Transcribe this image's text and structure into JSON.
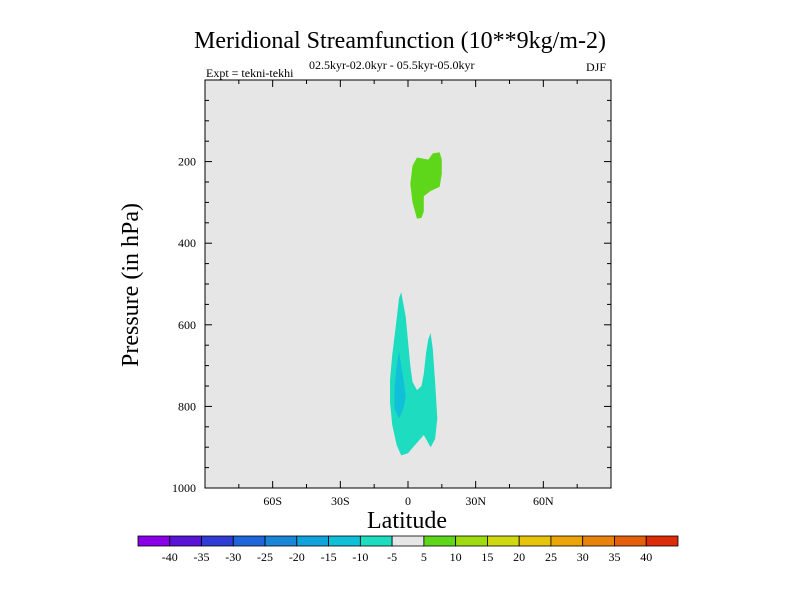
{
  "chart_data": {
    "type": "contour",
    "title": "Meridional Streamfunction (10**9kg/m-2)",
    "subtitle_left": "Expt = tekni-tekhi",
    "subtitle_center": "02.5kyr-02.0kyr - 05.5kyr-05.0kyr",
    "subtitle_right": "DJF",
    "xlabel": "Latitude",
    "ylabel": "Pressure (in hPa)",
    "xlim": [
      -90,
      90
    ],
    "ylim": [
      1000,
      0
    ],
    "x_ticks": [
      {
        "value": -60,
        "label": "60S"
      },
      {
        "value": -30,
        "label": "30S"
      },
      {
        "value": 0,
        "label": "0"
      },
      {
        "value": 30,
        "label": "30N"
      },
      {
        "value": 60,
        "label": "60N"
      }
    ],
    "y_ticks": [
      {
        "value": 200,
        "label": "200"
      },
      {
        "value": 400,
        "label": "400"
      },
      {
        "value": 600,
        "label": "600"
      },
      {
        "value": 800,
        "label": "800"
      },
      {
        "value": 1000,
        "label": "1000"
      }
    ],
    "background_color": "#e6e6e6",
    "colorbar": {
      "levels": [
        -40,
        -35,
        -30,
        -25,
        -20,
        -15,
        -10,
        -5,
        5,
        10,
        15,
        20,
        25,
        30,
        35,
        40
      ],
      "colors": [
        "#8a00e8",
        "#5a14d8",
        "#2f3cd6",
        "#1f66da",
        "#1a86d8",
        "#0fa2dc",
        "#10bfd8",
        "#1edcc0",
        "#e6e6e6",
        "#5ed71a",
        "#9edb10",
        "#cfd810",
        "#e6c40a",
        "#eba40a",
        "#e8820c",
        "#e45e0c",
        "#dc2c08"
      ]
    },
    "regions": [
      {
        "name": "positive-upper",
        "level_range": [
          5,
          10
        ],
        "color": "#5ed71a",
        "outline": [
          [
            4,
            340
          ],
          [
            2,
            300
          ],
          [
            1,
            255
          ],
          [
            2,
            210
          ],
          [
            4,
            190
          ],
          [
            9,
            195
          ],
          [
            11,
            180
          ],
          [
            14,
            177
          ],
          [
            15,
            195
          ],
          [
            15,
            230
          ],
          [
            14,
            262
          ],
          [
            10,
            272
          ],
          [
            7,
            285
          ],
          [
            7,
            322
          ],
          [
            6,
            338
          ]
        ]
      },
      {
        "name": "negative-lower-outer",
        "level_range": [
          -10,
          -5
        ],
        "color": "#1edcc0",
        "outline": [
          [
            -3,
            520
          ],
          [
            -1,
            580
          ],
          [
            0,
            640
          ],
          [
            1,
            700
          ],
          [
            2,
            740
          ],
          [
            4,
            760
          ],
          [
            6,
            750
          ],
          [
            7,
            720
          ],
          [
            8,
            670
          ],
          [
            9,
            635
          ],
          [
            10,
            620
          ],
          [
            11,
            660
          ],
          [
            12,
            740
          ],
          [
            13,
            830
          ],
          [
            12,
            880
          ],
          [
            10,
            900
          ],
          [
            7,
            870
          ],
          [
            3,
            895
          ],
          [
            0,
            915
          ],
          [
            -3,
            920
          ],
          [
            -5,
            895
          ],
          [
            -7,
            845
          ],
          [
            -8,
            790
          ],
          [
            -8,
            735
          ],
          [
            -7,
            675
          ],
          [
            -6,
            630
          ],
          [
            -5,
            585
          ],
          [
            -4,
            535
          ]
        ]
      },
      {
        "name": "negative-lower-inner",
        "level_range": [
          -15,
          -10
        ],
        "color": "#10bfd8",
        "outline": [
          [
            -4,
            665
          ],
          [
            -3,
            700
          ],
          [
            -2,
            735
          ],
          [
            -1,
            775
          ],
          [
            -2,
            805
          ],
          [
            -4,
            830
          ],
          [
            -6,
            805
          ],
          [
            -6,
            755
          ],
          [
            -5,
            700
          ]
        ]
      }
    ]
  }
}
